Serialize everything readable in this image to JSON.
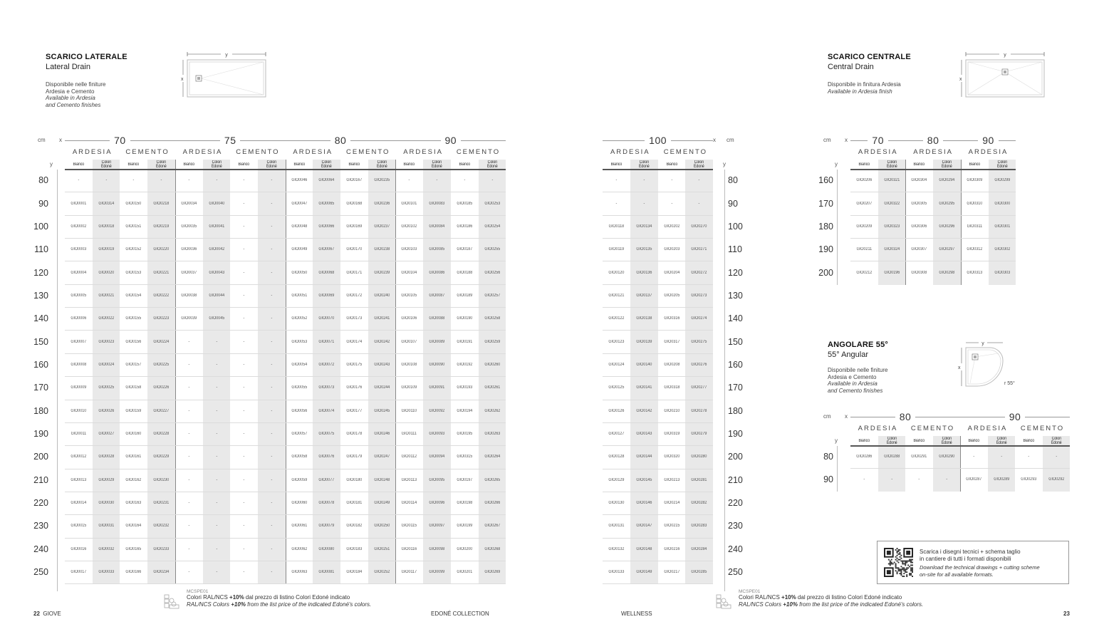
{
  "left_page": {
    "section": {
      "title": "SCARICO LATERALE",
      "subtitle": "Lateral Drain",
      "desc_it_1": "Disponibile nelle finiture",
      "desc_it_2": "Ardesia e Cemento",
      "desc_en_1": "Available in Ardesia",
      "desc_en_2": "and Cemento finishes",
      "diagram_x": "x",
      "diagram_y": "y"
    },
    "table": {
      "unit": "cm",
      "x_label": "x",
      "y_label": "y",
      "subheaders": [
        "Bianco",
        "Colori",
        "Edoné"
      ],
      "groups": [
        {
          "size": "70",
          "finishes": [
            "ARDESIA",
            "CEMENTO"
          ]
        },
        {
          "size": "75",
          "finishes": [
            "ARDESIA",
            "CEMENTO"
          ]
        },
        {
          "size": "80",
          "finishes": [
            "ARDESIA",
            "CEMENTO"
          ]
        },
        {
          "size": "90",
          "finishes": [
            "ARDESIA",
            "CEMENTO"
          ]
        }
      ],
      "rows": [
        {
          "y": "80",
          "codes": [
            "-",
            "-",
            "-",
            "-",
            "-",
            "-",
            "-",
            "-",
            "GIO0046",
            "GIO0064",
            "GIO0167",
            "GIO0235",
            "-",
            "-",
            "-",
            "-"
          ]
        },
        {
          "y": "90",
          "codes": [
            "GIO0001",
            "GIO0314",
            "GIO0150",
            "GIO0218",
            "GIO0034",
            "GIO0040",
            "-",
            "-",
            "GIO0047",
            "GIO0065",
            "GIO0168",
            "GIO0236",
            "GIO0101",
            "GIO0083",
            "GIO0185",
            "GIO0253"
          ]
        },
        {
          "y": "100",
          "codes": [
            "GIO0002",
            "GIO0018",
            "GIO0151",
            "GIO0219",
            "GIO0035",
            "GIO0041",
            "-",
            "-",
            "GIO0048",
            "GIO0066",
            "GIO0169",
            "GIO0237",
            "GIO0102",
            "GIO0084",
            "GIO0186",
            "GIO0254"
          ]
        },
        {
          "y": "110",
          "codes": [
            "GIO0003",
            "GIO0019",
            "GIO0152",
            "GIO0220",
            "GIO0036",
            "GIO0042",
            "-",
            "-",
            "GIO0049",
            "GIO0067",
            "GIO0170",
            "GIO0238",
            "GIO0103",
            "GIO0085",
            "GIO0187",
            "GIO0255"
          ]
        },
        {
          "y": "120",
          "codes": [
            "GIO0004",
            "GIO0020",
            "GIO0153",
            "GIO0221",
            "GIO0037",
            "GIO0043",
            "-",
            "-",
            "GIO0050",
            "GIO0068",
            "GIO0171",
            "GIO0239",
            "GIO0104",
            "GIO0086",
            "GIO0188",
            "GIO0256"
          ]
        },
        {
          "y": "130",
          "codes": [
            "GIO0005",
            "GIO0021",
            "GIO0154",
            "GIO0222",
            "GIO0038",
            "GIO0044",
            "-",
            "-",
            "GIO0051",
            "GIO0069",
            "GIO0172",
            "GIO0240",
            "GIO0105",
            "GIO0087",
            "GIO0189",
            "GIO0257"
          ]
        },
        {
          "y": "140",
          "codes": [
            "GIO0006",
            "GIO0022",
            "GIO0155",
            "GIO0223",
            "GIO0039",
            "GIO0045",
            "-",
            "-",
            "GIO0052",
            "GIO0070",
            "GIO0173",
            "GIO0241",
            "GIO0106",
            "GIO0088",
            "GIO0190",
            "GIO0258"
          ]
        },
        {
          "y": "150",
          "codes": [
            "GIO0007",
            "GIO0023",
            "GIO0156",
            "GIO0224",
            "-",
            "-",
            "-",
            "-",
            "GIO0053",
            "GIO0071",
            "GIO0174",
            "GIO0242",
            "GIO0107",
            "GIO0089",
            "GIO0191",
            "GIO0259"
          ]
        },
        {
          "y": "160",
          "codes": [
            "GIO0008",
            "GIO0024",
            "GIO0157",
            "GIO0225",
            "-",
            "-",
            "-",
            "-",
            "GIO0054",
            "GIO0072",
            "GIO0175",
            "GIO0243",
            "GIO0108",
            "GIO0090",
            "GIO0192",
            "GIO0260"
          ]
        },
        {
          "y": "170",
          "codes": [
            "GIO0009",
            "GIO0025",
            "GIO0158",
            "GIO0226",
            "-",
            "-",
            "-",
            "-",
            "GIO0055",
            "GIO0073",
            "GIO0176",
            "GIO0244",
            "GIO0109",
            "GIO0091",
            "GIO0193",
            "GIO0261"
          ]
        },
        {
          "y": "180",
          "codes": [
            "GIO0010",
            "GIO0026",
            "GIO0159",
            "GIO0227",
            "-",
            "-",
            "-",
            "-",
            "GIO0056",
            "GIO0074",
            "GIO0177",
            "GIO0245",
            "GIO0110",
            "GIO0092",
            "GIO0194",
            "GIO0262"
          ]
        },
        {
          "y": "190",
          "codes": [
            "GIO0011",
            "GIO0027",
            "GIO0160",
            "GIO0228",
            "-",
            "-",
            "-",
            "-",
            "GIO0057",
            "GIO0075",
            "GIO0178",
            "GIO0246",
            "GIO0111",
            "GIO0093",
            "GIO0195",
            "GIO0263"
          ]
        },
        {
          "y": "200",
          "codes": [
            "GIO0012",
            "GIO0028",
            "GIO0161",
            "GIO0229",
            "-",
            "-",
            "-",
            "-",
            "GIO0058",
            "GIO0076",
            "GIO0179",
            "GIO0247",
            "GIO0112",
            "GIO0094",
            "GIO0315",
            "GIO0264"
          ]
        },
        {
          "y": "210",
          "codes": [
            "GIO0013",
            "GIO0029",
            "GIO0162",
            "GIO0230",
            "-",
            "-",
            "-",
            "-",
            "GIO0059",
            "GIO0077",
            "GIO0180",
            "GIO0248",
            "GIO0113",
            "GIO0095",
            "GIO0197",
            "GIO0265"
          ]
        },
        {
          "y": "220",
          "codes": [
            "GIO0014",
            "GIO0030",
            "GIO0163",
            "GIO0231",
            "-",
            "-",
            "-",
            "-",
            "GIO0060",
            "GIO0078",
            "GIO0181",
            "GIO0249",
            "GIO0114",
            "GIO0096",
            "GIO0198",
            "GIO0266"
          ]
        },
        {
          "y": "230",
          "codes": [
            "GIO0015",
            "GIO0031",
            "GIO0164",
            "GIO0232",
            "-",
            "-",
            "-",
            "-",
            "GIO0061",
            "GIO0079",
            "GIO0182",
            "GIO0250",
            "GIO0115",
            "GIO0097",
            "GIO0199",
            "GIO0267"
          ]
        },
        {
          "y": "240",
          "codes": [
            "GIO0016",
            "GIO0032",
            "GIO0165",
            "GIO0233",
            "-",
            "-",
            "-",
            "-",
            "GIO0062",
            "GIO0080",
            "GIO0183",
            "GIO0251",
            "GIO0116",
            "GIO0098",
            "GIO0200",
            "GIO0268"
          ]
        },
        {
          "y": "250",
          "codes": [
            "GIO0017",
            "GIO0033",
            "GIO0166",
            "GIO0234",
            "-",
            "-",
            "-",
            "-",
            "GIO0063",
            "GIO0081",
            "GIO0184",
            "GIO0252",
            "GIO0117",
            "GIO0099",
            "GIO0201",
            "GIO0269"
          ]
        }
      ]
    },
    "footnote": {
      "code": "MCSPE01",
      "it_pre": "Colori RAL/NCS ",
      "it_bold": "+10%",
      "it_post": " dal prezzo di listino Colori Edoné indicato",
      "en_pre": "RAL/NCS Colors ",
      "en_bold": "+10%",
      "en_post": " from the list price of the indicated Edoné's colors."
    },
    "page_number": "22",
    "page_label": "GIOVE",
    "collection": "EDONÉ COLLECTION"
  },
  "right_page": {
    "table_100": {
      "unit": "cm",
      "x_label": "x",
      "y_label": "y",
      "subheaders": [
        "Bianco",
        "Colori",
        "Edoné"
      ],
      "groups": [
        {
          "size": "100",
          "finishes": [
            "ARDESIA",
            "CEMENTO"
          ]
        }
      ],
      "rows": [
        {
          "y": "80",
          "codes": [
            "-",
            "-",
            "-",
            "-"
          ]
        },
        {
          "y": "90",
          "codes": [
            "-",
            "-",
            "-",
            "-"
          ]
        },
        {
          "y": "100",
          "codes": [
            "GIO0118",
            "GIO0134",
            "GIO0202",
            "GIO0270"
          ]
        },
        {
          "y": "110",
          "codes": [
            "GIO0119",
            "GIO0135",
            "GIO0203",
            "GIO0271"
          ]
        },
        {
          "y": "120",
          "codes": [
            "GIO0120",
            "GIO0136",
            "GIO0204",
            "GIO0272"
          ]
        },
        {
          "y": "130",
          "codes": [
            "GIO0121",
            "GIO0137",
            "GIO0205",
            "GIO0273"
          ]
        },
        {
          "y": "140",
          "codes": [
            "GIO0122",
            "GIO0138",
            "GIO0316",
            "GIO0274"
          ]
        },
        {
          "y": "150",
          "codes": [
            "GIO0123",
            "GIO0139",
            "GIO0317",
            "GIO0275"
          ]
        },
        {
          "y": "160",
          "codes": [
            "GIO0124",
            "GIO0140",
            "GIO0208",
            "GIO0276"
          ]
        },
        {
          "y": "170",
          "codes": [
            "GIO0125",
            "GIO0141",
            "GIO0318",
            "GIO0277"
          ]
        },
        {
          "y": "180",
          "codes": [
            "GIO0126",
            "GIO0142",
            "GIO0210",
            "GIO0278"
          ]
        },
        {
          "y": "190",
          "codes": [
            "GIO0127",
            "GIO0143",
            "GIO0319",
            "GIO0279"
          ]
        },
        {
          "y": "200",
          "codes": [
            "GIO0128",
            "GIO0144",
            "GIO0320",
            "GIO0280"
          ]
        },
        {
          "y": "210",
          "codes": [
            "GIO0129",
            "GIO0145",
            "GIO0213",
            "GIO0281"
          ]
        },
        {
          "y": "220",
          "codes": [
            "GIO0130",
            "GIO0146",
            "GIO0214",
            "GIO0282"
          ]
        },
        {
          "y": "230",
          "codes": [
            "GIO0131",
            "GIO0147",
            "GIO0215",
            "GIO0283"
          ]
        },
        {
          "y": "240",
          "codes": [
            "GIO0132",
            "GIO0148",
            "GIO0216",
            "GIO0284"
          ]
        },
        {
          "y": "250",
          "codes": [
            "GIO0133",
            "GIO0149",
            "GIO0217",
            "GIO0285"
          ]
        }
      ]
    },
    "central": {
      "title": "SCARICO CENTRALE",
      "subtitle": "Central Drain",
      "desc_it_1": "Disponibile in finitura Ardesia",
      "desc_en_1": "Available in Ardesia finish",
      "diagram_x": "x",
      "diagram_y": "y",
      "table": {
        "unit": "cm",
        "x_label": "x",
        "y_label": "y",
        "subheaders": [
          "Bianco",
          "Colori",
          "Edoné"
        ],
        "groups": [
          {
            "size": "70",
            "finishes": [
              "ARDESIA"
            ]
          },
          {
            "size": "80",
            "finishes": [
              "ARDESIA"
            ]
          },
          {
            "size": "90",
            "finishes": [
              "ARDESIA"
            ]
          }
        ],
        "rows": [
          {
            "y": "160",
            "codes": [
              "GIO0206",
              "GIO0321",
              "GIO0304",
              "GIO0294",
              "GIO0309",
              "GIO0299"
            ]
          },
          {
            "y": "170",
            "codes": [
              "GIO0207",
              "GIO0322",
              "GIO0305",
              "GIO0295",
              "GIO0310",
              "GIO0300"
            ]
          },
          {
            "y": "180",
            "codes": [
              "GIO0209",
              "GIO0323",
              "GIO0306",
              "GIO0296",
              "GIO0311",
              "GIO0301"
            ]
          },
          {
            "y": "190",
            "codes": [
              "GIO0211",
              "GIO0324",
              "GIO0307",
              "GIO0297",
              "GIO0312",
              "GIO0302"
            ]
          },
          {
            "y": "200",
            "codes": [
              "GIO0212",
              "GIO0196",
              "GIO0308",
              "GIO0298",
              "GIO0313",
              "GIO0303"
            ]
          }
        ]
      }
    },
    "angular": {
      "title": "ANGOLARE 55°",
      "subtitle": "55° Angular",
      "desc_it_1": "Disponibile nelle finiture",
      "desc_it_2": "Ardesia e Cemento",
      "desc_en_1": "Available in Ardesia",
      "desc_en_2": "and Cemento finishes",
      "diagram_x": "x",
      "diagram_y": "y",
      "diagram_r": "r 55°",
      "table": {
        "unit": "cm",
        "x_label": "x",
        "y_label": "y",
        "subheaders": [
          "Bianco",
          "Colori",
          "Edoné"
        ],
        "groups": [
          {
            "size": "80",
            "finishes": [
              "ARDESIA",
              "CEMENTO"
            ]
          },
          {
            "size": "90",
            "finishes": [
              "ARDESIA",
              "CEMENTO"
            ]
          }
        ],
        "rows": [
          {
            "y": "80",
            "codes": [
              "GIO0286",
              "GIO0288",
              "GIO0291",
              "GIO0290",
              "-",
              "-",
              "-",
              "-"
            ]
          },
          {
            "y": "90",
            "codes": [
              "-",
              "-",
              "-",
              "-",
              "GIO0287",
              "GIO0289",
              "GIO0293",
              "GIO0292"
            ]
          }
        ]
      }
    },
    "download_box": {
      "it_1": "Scarica i disegni tecnici + schema taglio",
      "it_2": "in cantiere di tutti i formati disponibili",
      "en_1": "Download the technical drawings + cutting scheme",
      "en_2": "on-site for all available formats."
    },
    "footnote": {
      "code": "MCSPE01",
      "it_pre": "Colori RAL/NCS ",
      "it_bold": "+10%",
      "it_post": " dal prezzo di listino Colori Edoné indicato",
      "en_pre": "RAL/NCS Colors ",
      "en_bold": "+10%",
      "en_post": " from the list price of the indicated Edoné's colors."
    },
    "page_label": "WELLNESS",
    "page_number": "23"
  },
  "colors": {
    "column_shade": "#e9e9e9",
    "header_rule": "#555555",
    "row_rule": "#dcdcdc"
  }
}
